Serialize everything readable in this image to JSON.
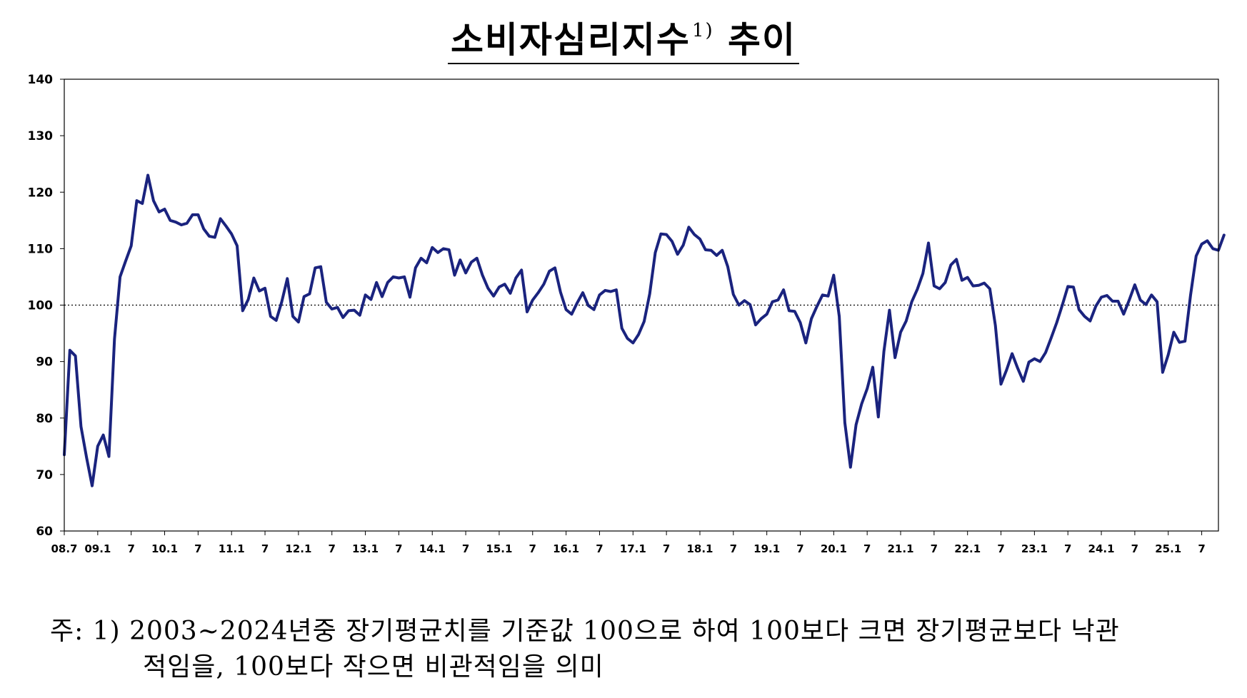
{
  "chart_data": {
    "type": "line",
    "title": "소비자심리지수",
    "title_sup": "1)",
    "title_suffix": "추이",
    "ylim": [
      60,
      140
    ],
    "yticks": [
      60,
      70,
      80,
      90,
      100,
      110,
      120,
      130,
      140
    ],
    "reference_line": 100,
    "xlim": [
      0,
      207
    ],
    "x_ticks": [
      {
        "label": "08.7",
        "index": 0
      },
      {
        "label": "09.1",
        "index": 6
      },
      {
        "label": "7",
        "index": 12
      },
      {
        "label": "10.1",
        "index": 18
      },
      {
        "label": "7",
        "index": 24
      },
      {
        "label": "11.1",
        "index": 30
      },
      {
        "label": "7",
        "index": 36
      },
      {
        "label": "12.1",
        "index": 42
      },
      {
        "label": "7",
        "index": 48
      },
      {
        "label": "13.1",
        "index": 54
      },
      {
        "label": "7",
        "index": 60
      },
      {
        "label": "14.1",
        "index": 66
      },
      {
        "label": "7",
        "index": 72
      },
      {
        "label": "15.1",
        "index": 78
      },
      {
        "label": "7",
        "index": 84
      },
      {
        "label": "16.1",
        "index": 90
      },
      {
        "label": "7",
        "index": 96
      },
      {
        "label": "17.1",
        "index": 102
      },
      {
        "label": "7",
        "index": 108
      },
      {
        "label": "18.1",
        "index": 114
      },
      {
        "label": "7",
        "index": 120
      },
      {
        "label": "19.1",
        "index": 126
      },
      {
        "label": "7",
        "index": 132
      },
      {
        "label": "20.1",
        "index": 138
      },
      {
        "label": "7",
        "index": 144
      },
      {
        "label": "21.1",
        "index": 150
      },
      {
        "label": "7",
        "index": 156
      },
      {
        "label": "22.1",
        "index": 162
      },
      {
        "label": "7",
        "index": 168
      },
      {
        "label": "23.1",
        "index": 174
      },
      {
        "label": "7",
        "index": 180
      },
      {
        "label": "24.1",
        "index": 186
      },
      {
        "label": "7",
        "index": 192
      },
      {
        "label": "25.1",
        "index": 198
      },
      {
        "label": "7",
        "index": 204
      }
    ],
    "line_color": "#1a237e",
    "grid": false,
    "legend": "none",
    "values": [
      73.5,
      92.0,
      91.0,
      78.5,
      73.0,
      68.0,
      75.0,
      77.0,
      73.2,
      94.0,
      105.0,
      107.8,
      110.5,
      118.5,
      118.0,
      123.0,
      118.5,
      116.5,
      117.0,
      115.0,
      114.7,
      114.2,
      114.5,
      116.0,
      116.0,
      113.5,
      112.2,
      112.0,
      115.3,
      114.0,
      112.6,
      110.5,
      99.0,
      101.0,
      104.8,
      102.5,
      103.0,
      98.0,
      97.3,
      100.6,
      104.7,
      98.0,
      97.0,
      101.5,
      102.0,
      106.6,
      106.8,
      100.5,
      99.3,
      99.6,
      97.8,
      99.0,
      99.1,
      98.2,
      101.8,
      101.0,
      104.0,
      101.5,
      104.0,
      105.0,
      104.8,
      105.0,
      101.4,
      106.6,
      108.3,
      107.5,
      110.2,
      109.3,
      110.0,
      109.8,
      105.3,
      108.0,
      105.7,
      107.6,
      108.3,
      105.3,
      103.0,
      101.6,
      103.2,
      103.7,
      102.1,
      104.8,
      106.2,
      98.8,
      100.9,
      102.2,
      103.7,
      106.0,
      106.6,
      102.3,
      99.2,
      98.4,
      100.4,
      102.2,
      99.9,
      99.2,
      101.8,
      102.6,
      102.4,
      102.7,
      95.9,
      94.1,
      93.3,
      94.8,
      97.1,
      102.0,
      109.3,
      112.6,
      112.5,
      111.3,
      109.0,
      110.6,
      113.8,
      112.5,
      111.7,
      109.8,
      109.7,
      108.8,
      109.7,
      106.8,
      101.9,
      100.0,
      100.8,
      100.1,
      96.5,
      97.6,
      98.4,
      100.6,
      100.9,
      102.7,
      99.0,
      98.9,
      96.9,
      93.3,
      97.6,
      99.8,
      101.8,
      101.6,
      105.3,
      98.0,
      79.2,
      71.3,
      78.8,
      82.5,
      85.2,
      89.0,
      80.2,
      91.8,
      99.1,
      90.7,
      95.2,
      97.2,
      100.6,
      102.8,
      105.6,
      111.0,
      103.4,
      102.9,
      104.0,
      107.1,
      108.1,
      104.4,
      104.9,
      103.4,
      103.5,
      103.9,
      102.9,
      96.4,
      86.0,
      88.5,
      91.4,
      88.8,
      86.5,
      89.9,
      90.5,
      90.0,
      91.6,
      94.2,
      96.9,
      100.0,
      103.3,
      103.2,
      99.2,
      98.0,
      97.2,
      99.8,
      101.4,
      101.7,
      100.7,
      100.7,
      98.4,
      100.9,
      103.6,
      100.9,
      100.1,
      101.8,
      100.6,
      88.1,
      91.2,
      95.2,
      93.4,
      93.6,
      101.8,
      108.7,
      110.8,
      111.4,
      110.0,
      109.7,
      112.4
    ]
  },
  "note": {
    "line1": "주: 1) 2003~2024년중 장기평균치를 기준값 100으로 하여 100보다 크면 장기평균보다 낙관",
    "line2": "적임을, 100보다 작으면 비관적임을 의미"
  }
}
